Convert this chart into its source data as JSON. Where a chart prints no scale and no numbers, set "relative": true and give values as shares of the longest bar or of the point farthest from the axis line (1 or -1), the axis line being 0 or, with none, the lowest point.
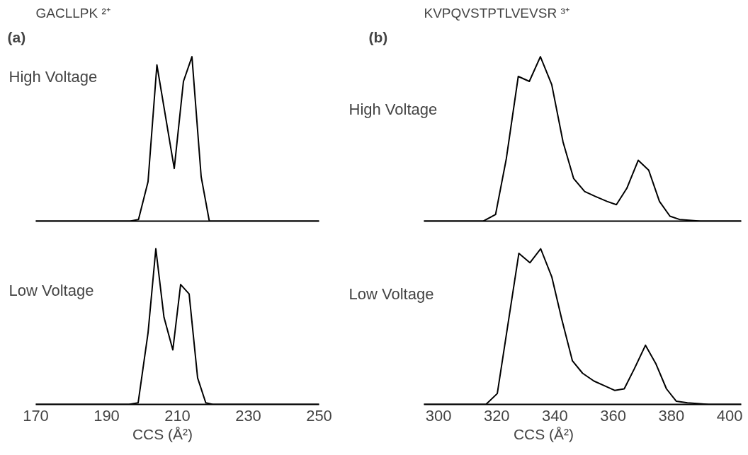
{
  "chart_data": [
    {
      "type": "line",
      "title": "GACLLPK ²⁺",
      "subtitle": "(a)",
      "relative": true,
      "tick_labels": false,
      "xlim": [
        170,
        250
      ],
      "x": [
        170,
        196.6,
        199,
        201.7,
        204.2,
        209.1,
        211.7,
        214.1,
        216.7,
        219,
        222,
        250
      ],
      "series": [
        {
          "name": "High Voltage",
          "color": "#000000",
          "values": [
            0,
            0,
            0.01,
            0.24,
            0.95,
            0.32,
            0.85,
            1,
            0.27,
            0,
            0,
            0
          ]
        }
      ]
    },
    {
      "type": "line",
      "title": "KVPQVSTPTLVEVSR ³⁺",
      "subtitle": "(b)",
      "relative": true,
      "tick_labels": false,
      "xlim": [
        295,
        404
      ],
      "x": [
        295,
        315.4,
        319.6,
        323.3,
        327.4,
        331.2,
        335,
        338.9,
        342.8,
        346.4,
        350.2,
        353.9,
        357.9,
        361.1,
        364.7,
        368.6,
        372.2,
        375.9,
        379.5,
        382.8,
        390,
        404
      ],
      "series": [
        {
          "name": "High Voltage",
          "color": "#000000",
          "values": [
            0,
            0,
            0.04,
            0.38,
            0.88,
            0.85,
            1,
            0.83,
            0.48,
            0.26,
            0.18,
            0.15,
            0.12,
            0.1,
            0.2,
            0.37,
            0.31,
            0.12,
            0.03,
            0.01,
            0,
            0
          ]
        }
      ]
    },
    {
      "type": "line",
      "xlabel": "CCS (Å²)",
      "relative": true,
      "tick_labels": "x",
      "xlim": [
        170,
        250
      ],
      "xticks": [
        170,
        190,
        210,
        230,
        250
      ],
      "x": [
        170,
        196.3,
        198.9,
        201.7,
        203.9,
        206.2,
        208.7,
        210.9,
        213.3,
        215.7,
        218,
        220,
        250
      ],
      "series": [
        {
          "name": "Low Voltage",
          "color": "#000000",
          "values": [
            0,
            0,
            0.01,
            0.46,
            1,
            0.56,
            0.35,
            0.77,
            0.71,
            0.17,
            0.01,
            0,
            0
          ]
        }
      ]
    },
    {
      "type": "line",
      "xlabel": "CCS (Å²)",
      "relative": true,
      "tick_labels": "x",
      "xlim": [
        295,
        404
      ],
      "xticks": [
        300,
        320,
        340,
        360,
        380,
        400
      ],
      "x": [
        295,
        316.3,
        320.2,
        327.6,
        331.4,
        335.1,
        338.9,
        342.3,
        346,
        349.5,
        353.4,
        357,
        360.5,
        363.8,
        367.3,
        371.1,
        374.7,
        378.3,
        381.7,
        385.5,
        392.8,
        404
      ],
      "series": [
        {
          "name": "Low Voltage",
          "color": "#000000",
          "values": [
            0,
            0,
            0.07,
            0.97,
            0.91,
            1,
            0.82,
            0.55,
            0.28,
            0.2,
            0.15,
            0.12,
            0.09,
            0.1,
            0.23,
            0.38,
            0.26,
            0.1,
            0.02,
            0.01,
            0,
            0
          ]
        }
      ]
    }
  ]
}
